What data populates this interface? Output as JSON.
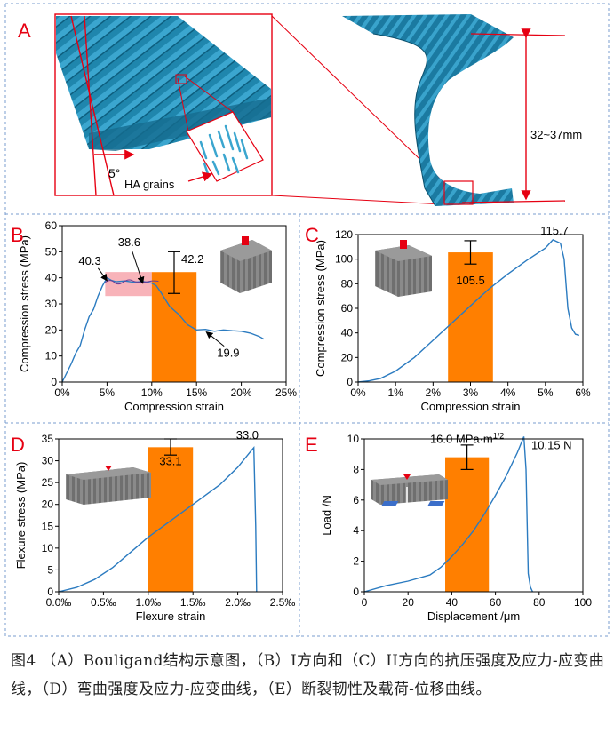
{
  "panels": {
    "A": {
      "letter": "A",
      "angle_label": "5°",
      "grains_label": "HA grains",
      "height_label": "32~37mm"
    }
  },
  "chart_data": [
    {
      "panel": "B",
      "type": "line",
      "ylabel": "Compression stress (MPa)",
      "xlabel": "Compression strain",
      "xlim": [
        0,
        25
      ],
      "ylim": [
        0,
        60
      ],
      "xticks": [
        "0%",
        "5%",
        "10%",
        "15%",
        "20%",
        "25%"
      ],
      "yticks": [
        "0",
        "10",
        "20",
        "30",
        "40",
        "50",
        "60"
      ],
      "bar": {
        "x_start": 10,
        "x_end": 15,
        "value": 42.2,
        "error": [
          34,
          50
        ],
        "label": "42.2"
      },
      "annotations": [
        {
          "text": "40.3",
          "x": 4.8,
          "y": 40.3
        },
        {
          "text": "38.6",
          "x": 9.0,
          "y": 38.6
        },
        {
          "text": "19.9",
          "x": 15.5,
          "y": 19.9
        }
      ],
      "x": [
        0,
        1,
        1.5,
        2,
        2.5,
        3,
        3.5,
        4,
        4.5,
        5,
        5.5,
        6,
        7,
        8,
        9,
        10,
        10.5,
        11,
        12,
        13,
        14,
        15,
        16,
        17,
        18,
        19,
        20,
        21,
        22,
        22.5
      ],
      "y": [
        0,
        7,
        11,
        14,
        20,
        25,
        28,
        33,
        37,
        40,
        39,
        38.5,
        38.8,
        38.3,
        38.6,
        38,
        37,
        34.5,
        29,
        26,
        22,
        20,
        20.2,
        19.5,
        20,
        19.7,
        19.5,
        18.8,
        17.5,
        16.5
      ]
    },
    {
      "panel": "C",
      "type": "line",
      "ylabel": "Compression stress (MPa)",
      "xlabel": "Compression strain",
      "xlim": [
        0,
        6
      ],
      "ylim": [
        0,
        120
      ],
      "xticks": [
        "0%",
        "1%",
        "2%",
        "3%",
        "4%",
        "5%",
        "6%"
      ],
      "yticks": [
        "0",
        "20",
        "40",
        "60",
        "80",
        "100",
        "120"
      ],
      "bar": {
        "x_start": 2.4,
        "x_end": 3.6,
        "value": 105.5,
        "error": [
          96,
          115
        ],
        "label": "105.5"
      },
      "annotations": [
        {
          "text": "115.7",
          "x": 5.2,
          "y": 115.7
        }
      ],
      "x": [
        0,
        0.3,
        0.6,
        1,
        1.5,
        2,
        2.5,
        3,
        3.5,
        4,
        4.5,
        5,
        5.2,
        5.4,
        5.5,
        5.6,
        5.7,
        5.8,
        5.9
      ],
      "y": [
        0,
        1,
        3,
        9,
        20,
        34,
        48,
        62,
        76,
        88,
        99,
        109,
        115.7,
        113,
        100,
        60,
        44,
        39,
        38
      ]
    },
    {
      "panel": "D",
      "type": "line",
      "ylabel": "Flexure stress (MPa)",
      "xlabel": "Flexure strain",
      "xlim": [
        0,
        2.5
      ],
      "ylim": [
        0,
        35
      ],
      "xticks": [
        "0.0‰",
        "0.5‰",
        "1.0‰",
        "1.5‰",
        "2.0‰",
        "2.5‰"
      ],
      "yticks": [
        "0",
        "5",
        "10",
        "15",
        "20",
        "25",
        "30",
        "35"
      ],
      "bar": {
        "x_start": 1.0,
        "x_end": 1.5,
        "value": 33.1,
        "error": [
          31.3,
          35
        ],
        "label": "33.1"
      },
      "annotations": [
        {
          "text": "33.0",
          "x": 2.18,
          "y": 33.0
        }
      ],
      "x": [
        0,
        0.2,
        0.4,
        0.6,
        0.8,
        1.0,
        1.2,
        1.4,
        1.6,
        1.8,
        2.0,
        2.15,
        2.18,
        2.2,
        2.21
      ],
      "y": [
        0,
        1,
        2.8,
        5.5,
        9,
        12.5,
        15.5,
        18.5,
        21.5,
        24.5,
        28.5,
        32.3,
        33.0,
        15,
        0
      ]
    },
    {
      "panel": "E",
      "type": "line",
      "ylabel": "Load /N",
      "xlabel": "Displacement /μm",
      "xlim": [
        0,
        100
      ],
      "ylim": [
        0,
        10
      ],
      "xticks": [
        "0",
        "20",
        "40",
        "60",
        "80",
        "100"
      ],
      "yticks": [
        "0",
        "2",
        "4",
        "6",
        "8",
        "10"
      ],
      "bar": {
        "x_start": 37,
        "x_end": 57,
        "value": 8.8,
        "error": [
          8.0,
          9.6
        ],
        "label": "16.0 MPa·m",
        "label_sup": "1/2"
      },
      "annotations": [
        {
          "text": "10.15 N",
          "x": 74,
          "y": 10.15
        }
      ],
      "x": [
        0,
        10,
        20,
        30,
        35,
        40,
        45,
        50,
        55,
        60,
        65,
        70,
        73,
        74,
        75,
        76,
        77
      ],
      "y": [
        0,
        0.4,
        0.7,
        1.1,
        1.6,
        2.3,
        3.1,
        4.0,
        5.1,
        6.3,
        7.6,
        9.1,
        10.15,
        8,
        1.2,
        0.3,
        0
      ]
    }
  ],
  "caption": "图4 （A）Bouligand结构示意图，（B）I方向和（C）II方向的抗压强度及应力-应变曲线，（D）弯曲强度及应力-应变曲线，（E）断裂韧性及载荷-位移曲线。"
}
